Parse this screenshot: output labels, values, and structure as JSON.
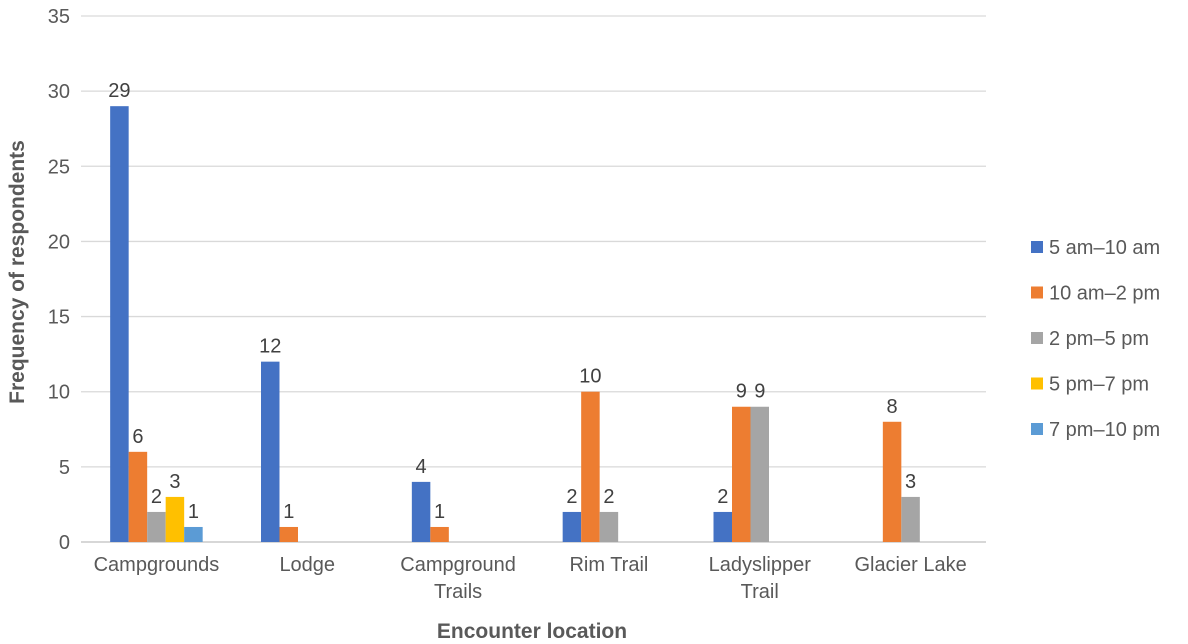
{
  "chart_data": {
    "type": "bar",
    "xlabel": "Encounter location",
    "ylabel": "Frequency of respondents",
    "ylim": [
      0,
      35
    ],
    "yticks": [
      0,
      5,
      10,
      15,
      20,
      25,
      30,
      35
    ],
    "grid": true,
    "legend_position": "right",
    "categories": [
      [
        "Campgrounds"
      ],
      [
        "Lodge"
      ],
      [
        "Campground",
        "Trails"
      ],
      [
        "Rim Trail"
      ],
      [
        "Ladyslipper",
        "Trail"
      ],
      [
        "Glacier Lake"
      ]
    ],
    "series": [
      {
        "name": "5 am–10 am",
        "color": "#4472C4",
        "values": [
          29,
          12,
          4,
          2,
          2,
          null
        ]
      },
      {
        "name": "10 am–2 pm",
        "color": "#ED7D31",
        "values": [
          6,
          1,
          1,
          10,
          9,
          8
        ]
      },
      {
        "name": "2 pm–5 pm",
        "color": "#A5A5A5",
        "values": [
          2,
          null,
          null,
          2,
          9,
          3
        ]
      },
      {
        "name": "5 pm–7 pm",
        "color": "#FFC000",
        "values": [
          3,
          null,
          null,
          null,
          null,
          null
        ]
      },
      {
        "name": "7 pm–10 pm",
        "color": "#5B9BD5",
        "values": [
          1,
          null,
          null,
          null,
          null,
          null
        ]
      }
    ]
  }
}
